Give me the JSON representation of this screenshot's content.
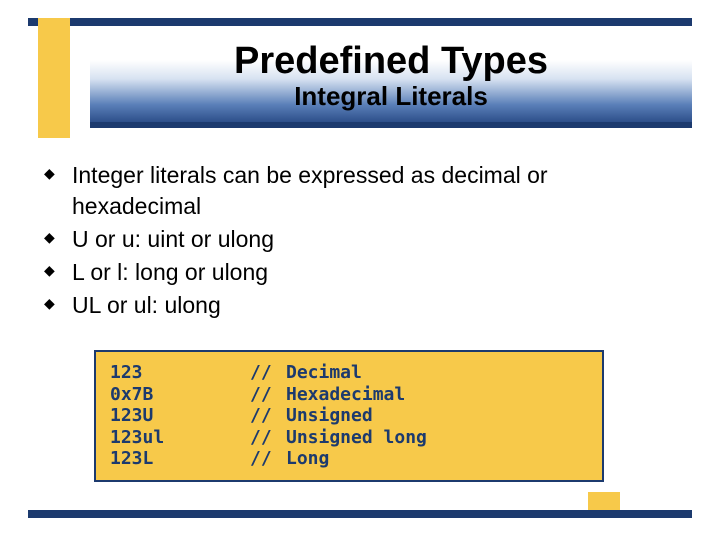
{
  "colors": {
    "navy": "#1c3a6e",
    "gold": "#f7c94a",
    "text": "#000000",
    "code_text": "#1c3a6e",
    "background": "#ffffff"
  },
  "title": "Predefined Types",
  "subtitle": "Integral Literals",
  "bullets": [
    "Integer literals can be expressed as decimal or hexadecimal",
    "U or u: uint or ulong",
    "L or l: long or ulong",
    "UL or ul: ulong"
  ],
  "code": {
    "rows": [
      {
        "literal": "123",
        "slash": "//",
        "comment": "Decimal"
      },
      {
        "literal": "0x7B",
        "slash": "//",
        "comment": "Hexadecimal"
      },
      {
        "literal": "123U",
        "slash": "//",
        "comment": "Unsigned"
      },
      {
        "literal": "123ul",
        "slash": "//",
        "comment": "Unsigned long"
      },
      {
        "literal": "123L",
        "slash": "//",
        "comment": "Long"
      }
    ]
  }
}
